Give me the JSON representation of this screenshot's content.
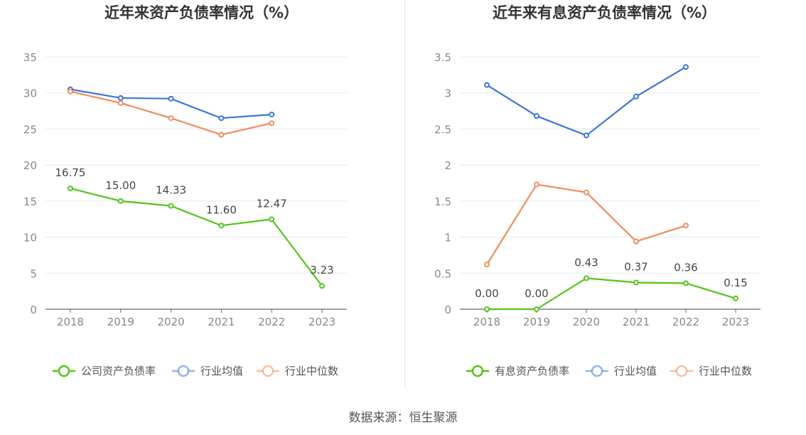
{
  "footer": {
    "source": "数据来源：恒生聚源"
  },
  "chart_data": [
    {
      "type": "line",
      "title": "近年来资产负债率情况（%）",
      "x": [
        "2018",
        "2019",
        "2020",
        "2021",
        "2022",
        "2023"
      ],
      "ylim": [
        0,
        35
      ],
      "yticks": [
        0,
        5,
        10,
        15,
        20,
        25,
        30,
        35
      ],
      "grid": true,
      "legend_position": "bottom",
      "series": [
        {
          "name": "公司资产负债率",
          "color": "#52c41a",
          "labeled": true,
          "labels": [
            "16.75",
            "15.00",
            "14.33",
            "11.60",
            "12.47",
            "3.23"
          ],
          "values": [
            16.75,
            15.0,
            14.33,
            11.6,
            12.47,
            3.23
          ]
        },
        {
          "name": "行业均值",
          "color": "#3a75dc",
          "labeled": false,
          "values": [
            30.5,
            29.3,
            29.2,
            26.5,
            27.0,
            null
          ]
        },
        {
          "name": "行业中位数",
          "color": "#f08c5a",
          "labeled": false,
          "values": [
            30.2,
            28.6,
            26.5,
            24.2,
            25.8,
            null
          ]
        }
      ]
    },
    {
      "type": "line",
      "title": "近年来有息资产负债率情况（%）",
      "x": [
        "2018",
        "2019",
        "2020",
        "2021",
        "2022",
        "2023"
      ],
      "ylim": [
        0,
        3.5
      ],
      "yticks": [
        0,
        0.5,
        1,
        1.5,
        2,
        2.5,
        3,
        3.5
      ],
      "ytick_labels": [
        "0",
        "0.5",
        "1",
        "1.5",
        "2",
        "2.5",
        "3",
        "3.5"
      ],
      "grid": true,
      "legend_position": "bottom",
      "series": [
        {
          "name": "有息资产负债率",
          "color": "#52c41a",
          "labeled": true,
          "labels": [
            "0.00",
            "0.00",
            "0.43",
            "0.37",
            "0.36",
            "0.15"
          ],
          "values": [
            0.0,
            0.0,
            0.43,
            0.37,
            0.36,
            0.15
          ]
        },
        {
          "name": "行业均值",
          "color": "#3a75dc",
          "labeled": false,
          "values": [
            3.11,
            2.68,
            2.41,
            2.95,
            3.36,
            null
          ]
        },
        {
          "name": "行业中位数",
          "color": "#f08c5a",
          "labeled": false,
          "values": [
            0.62,
            1.73,
            1.62,
            0.94,
            1.16,
            null
          ]
        }
      ]
    }
  ]
}
